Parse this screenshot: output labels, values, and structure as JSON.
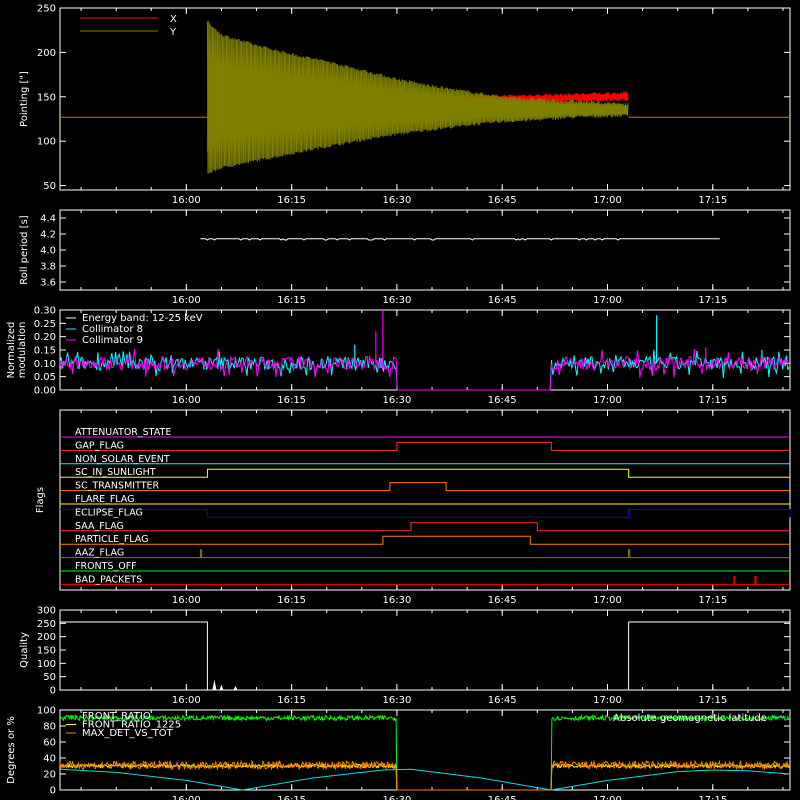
{
  "figure": {
    "background": "#000000",
    "foreground": "#ffffff"
  },
  "time_axis": {
    "range": [
      "15:42",
      "17:26"
    ],
    "tick_labels": [
      "16:00",
      "16:15",
      "16:30",
      "16:45",
      "17:00",
      "17:15"
    ]
  },
  "chart_data": [
    {
      "id": "pointing",
      "type": "line",
      "ylabel": "Pointing [\"]",
      "ylim": [
        45,
        250
      ],
      "yticks": [
        50,
        100,
        150,
        200,
        250
      ],
      "series": [
        {
          "name": "X",
          "color": "#ff0000",
          "envelope": [
            [
              "16:03",
              90,
              190
            ],
            [
              "16:05",
              100,
              183
            ],
            [
              "16:10",
              108,
              176
            ],
            [
              "16:15",
              114,
              170
            ],
            [
              "16:20",
              120,
              164
            ],
            [
              "16:25",
              125,
              160
            ],
            [
              "16:30",
              130,
              156
            ],
            [
              "16:35",
              134,
              152
            ],
            [
              "16:40",
              138,
              151
            ],
            [
              "16:45",
              142,
              151
            ],
            [
              "16:50",
              144,
              152
            ],
            [
              "16:55",
              145,
              153
            ],
            [
              "17:00",
              146,
              154
            ],
            [
              "17:03",
              146,
              155
            ]
          ],
          "baseline": 127
        },
        {
          "name": "Y",
          "color": "#808000",
          "envelope": [
            [
              "16:03",
              235,
              63
            ],
            [
              "16:05",
              220,
              70
            ],
            [
              "16:10",
              208,
              78
            ],
            [
              "16:15",
              198,
              86
            ],
            [
              "16:20",
              190,
              94
            ],
            [
              "16:25",
              180,
              101
            ],
            [
              "16:30",
              170,
              108
            ],
            [
              "16:35",
              162,
              113
            ],
            [
              "16:40",
              156,
              118
            ],
            [
              "16:45",
              150,
              122
            ],
            [
              "16:50",
              147,
              124
            ],
            [
              "16:55",
              145,
              127
            ],
            [
              "17:00",
              143,
              128
            ],
            [
              "17:03",
              142,
              129
            ]
          ],
          "baseline": 127
        }
      ]
    },
    {
      "id": "roll",
      "type": "line",
      "ylabel": "Roll period [s]",
      "ylim": [
        3.5,
        4.5
      ],
      "yticks": [
        "3.6",
        "3.8",
        "4.0",
        "4.2",
        "4.4"
      ],
      "series": [
        {
          "name": "",
          "color": "#ffffff",
          "value": 4.14,
          "x_range": [
            "16:02",
            "17:16"
          ]
        }
      ]
    },
    {
      "id": "modulation",
      "type": "line",
      "ylabel": "Normalized modulation",
      "ylim": [
        0,
        0.3
      ],
      "yticks": [
        "0.00",
        "0.05",
        "0.10",
        "0.15",
        "0.20",
        "0.25",
        "0.30"
      ],
      "legend": {
        "title": "Energy band: 12-25 keV"
      },
      "series": [
        {
          "name": "Collimator 8",
          "color": "#00ffff",
          "mean": 0.1,
          "noise": 0.025,
          "gap": [
            "16:30",
            "16:52"
          ],
          "spikes": [
            [
              "16:24",
              0.17
            ],
            [
              "17:07",
              0.28
            ],
            [
              "17:22",
              0.15
            ]
          ]
        },
        {
          "name": "Collimator 9",
          "color": "#ff00ff",
          "mean": 0.1,
          "noise": 0.025,
          "gap": [
            "16:30",
            "16:52"
          ],
          "spikes": [
            [
              "16:28",
              0.3
            ],
            [
              "16:27",
              0.22
            ],
            [
              "17:14",
              0.16
            ]
          ]
        }
      ]
    },
    {
      "id": "flags",
      "type": "line",
      "ylabel": "Flags",
      "flags": [
        {
          "name": "ATTENUATOR_STATE",
          "color": "#ff00ff",
          "highs": []
        },
        {
          "name": "GAP_FLAG",
          "color": "#ff3030",
          "highs": [
            [
              "16:30",
              "16:52"
            ]
          ]
        },
        {
          "name": "NON_SOLAR_EVENT",
          "color": "#00ffff",
          "highs": []
        },
        {
          "name": "SC_IN_SUNLIGHT",
          "color": "#ffff00",
          "highs": [
            [
              "16:03",
              "17:03"
            ]
          ]
        },
        {
          "name": "SC_TRANSMITTER",
          "color": "#ff8000",
          "highs": [
            [
              "16:29",
              "16:37"
            ]
          ]
        },
        {
          "name": "FLARE_FLAG",
          "color": "#ffff00",
          "highs": []
        },
        {
          "name": "ECLIPSE_FLAG",
          "color": "#0000ff",
          "highs": [
            [
              "15:42",
              "16:03"
            ],
            [
              "17:03",
              "17:26"
            ]
          ]
        },
        {
          "name": "SAA_FLAG",
          "color": "#ff3030",
          "highs": [
            [
              "16:32",
              "16:50"
            ]
          ]
        },
        {
          "name": "PARTICLE_FLAG",
          "color": "#ff8000",
          "highs": [
            [
              "16:28",
              "16:49"
            ]
          ]
        },
        {
          "name": "AAZ_FLAG",
          "color": "#808000",
          "highs": [
            [
              "16:02",
              "16:02"
            ],
            [
              "17:03",
              "17:03"
            ]
          ]
        },
        {
          "name": "FRONTS_OFF",
          "color": "#00ff00",
          "highs": []
        },
        {
          "name": "BAD_PACKETS",
          "color": "#ff0000",
          "highs": [
            [
              "17:18",
              "17:18"
            ],
            [
              "17:21",
              "17:21"
            ]
          ]
        }
      ]
    },
    {
      "id": "quality",
      "type": "line",
      "ylabel": "Quality",
      "ylim": [
        0,
        300
      ],
      "yticks": [
        0,
        50,
        100,
        150,
        200,
        250,
        300
      ],
      "series": [
        {
          "name": "",
          "color": "#ffffff",
          "segments": [
            [
              [
                "15:42",
                255
              ],
              [
                "16:03",
                255
              ],
              [
                "16:03",
                0
              ],
              [
                "17:03",
                0
              ],
              [
                "17:03",
                255
              ],
              [
                "17:26",
                255
              ]
            ]
          ],
          "bumps": [
            [
              "16:04",
              40
            ],
            [
              "16:05",
              20
            ],
            [
              "16:07",
              15
            ]
          ]
        }
      ]
    },
    {
      "id": "fronts",
      "type": "line",
      "ylabel": "Degrees or %",
      "ylim": [
        0,
        100
      ],
      "yticks": [
        0,
        20,
        40,
        60,
        80,
        100
      ],
      "legend_left": [
        "FRONT_RATIO",
        "FRONT_RATIO_1225",
        "MAX_DET_VS_TOT"
      ],
      "legend_right": "Absolute geomagnetic latitude",
      "series": [
        {
          "name": "FRONT_RATIO",
          "color": "#00ff00",
          "mean": 90,
          "noise": 3,
          "gap": [
            "16:30",
            "16:52"
          ]
        },
        {
          "name": "FRONT_RATIO_1225",
          "color": "#ffff00",
          "mean": 30,
          "noise": 2,
          "gap": [
            "16:30",
            "16:52"
          ]
        },
        {
          "name": "MAX_DET_VS_TOT",
          "color": "#ff8000",
          "mean": 31,
          "noise": 5,
          "gap": [
            "16:30",
            "16:52"
          ]
        },
        {
          "name": "Absolute geomagnetic latitude",
          "color": "#00e0e0",
          "points": [
            [
              "15:42",
              26
            ],
            [
              "15:50",
              22
            ],
            [
              "16:00",
              12
            ],
            [
              "16:08",
              0
            ],
            [
              "16:18",
              15
            ],
            [
              "16:28",
              25
            ],
            [
              "16:32",
              26
            ],
            [
              "16:42",
              15
            ],
            [
              "16:52",
              0
            ],
            [
              "17:00",
              12
            ],
            [
              "17:10",
              23
            ],
            [
              "17:15",
              25
            ],
            [
              "17:20",
              24
            ],
            [
              "17:26",
              20
            ]
          ]
        }
      ]
    }
  ]
}
